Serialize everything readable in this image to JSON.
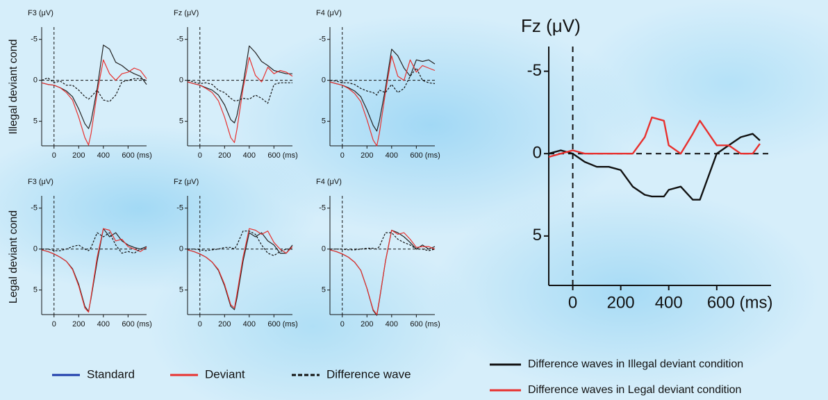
{
  "row_labels": [
    "Illegal deviant cond",
    "Legal deviant cond"
  ],
  "legend": [
    {
      "name": "Standard",
      "color": "#1c3aa9"
    },
    {
      "name": "Deviant",
      "color": "#e8302e"
    },
    {
      "name": "Difference wave",
      "color": "#111111",
      "dashed": true
    }
  ],
  "chart_data": [
    {
      "type": "line",
      "title": "F3 (μV)",
      "x": [
        -100,
        -50,
        0,
        50,
        100,
        150,
        200,
        250,
        280,
        300,
        350,
        400,
        450,
        500,
        550,
        600,
        650,
        700,
        750
      ],
      "xlim": [
        -100,
        750
      ],
      "ylim": [
        8,
        -6.5
      ],
      "xticks": [
        0,
        200,
        400,
        {
          "value": 600,
          "label": "600 (ms)"
        }
      ],
      "yticks": [
        -5,
        0,
        5
      ],
      "series": [
        {
          "color": "#222222",
          "values": [
            0.3,
            0.5,
            0.6,
            0.9,
            1.3,
            2,
            3.5,
            5.3,
            5.9,
            5,
            1,
            -4.3,
            -3.8,
            -2.2,
            -1.8,
            -1.2,
            -0.8,
            -0.5,
            0.5
          ]
        },
        {
          "color": "#e8302e",
          "values": [
            0.3,
            0.5,
            0.6,
            0.9,
            1.5,
            2.4,
            4.5,
            7,
            7.9,
            6.5,
            1.5,
            -2.5,
            -0.8,
            0,
            -0.8,
            -1,
            -1.5,
            -1.2,
            -0.2
          ]
        },
        {
          "color": "#111111",
          "dashed": true,
          "values": [
            0,
            -0.3,
            0.3,
            0.1,
            0.6,
            0.6,
            1.2,
            2,
            2.3,
            2,
            1.2,
            2.4,
            2.6,
            1.8,
            0.2,
            0,
            -0.2,
            -0.2,
            0
          ]
        }
      ]
    },
    {
      "type": "line",
      "title": "Fz (μV)",
      "x": [
        -100,
        -50,
        0,
        50,
        100,
        150,
        200,
        250,
        280,
        300,
        350,
        400,
        450,
        500,
        550,
        600,
        650,
        700,
        750
      ],
      "xlim": [
        -100,
        750
      ],
      "ylim": [
        8,
        -6.5
      ],
      "xticks": [
        0,
        200,
        400,
        {
          "value": 600,
          "label": "600 (ms)"
        }
      ],
      "yticks": [
        -5,
        0,
        5
      ],
      "series": [
        {
          "color": "#222222",
          "values": [
            0.2,
            0.4,
            0.6,
            0.9,
            1.2,
            1.8,
            3,
            4.8,
            5.2,
            4.3,
            0.5,
            -4.2,
            -3.4,
            -2.3,
            -1.8,
            -1.2,
            -1,
            -0.8,
            -0.8
          ]
        },
        {
          "color": "#e8302e",
          "values": [
            0.2,
            0.4,
            0.6,
            1,
            1.5,
            2.5,
            4.5,
            7,
            7.6,
            6,
            1,
            -2.8,
            -0.6,
            0.2,
            -1.6,
            -0.8,
            -1.2,
            -1,
            -0.5
          ]
        },
        {
          "color": "#111111",
          "dashed": true,
          "values": [
            0,
            0.2,
            0.4,
            0.3,
            0.5,
            1.2,
            1.5,
            2.2,
            2.5,
            2.5,
            2.2,
            2.3,
            1.8,
            2.2,
            2.8,
            0.5,
            0.3,
            0.3,
            0.3
          ]
        }
      ]
    },
    {
      "type": "line",
      "title": "F4 (μV)",
      "x": [
        -100,
        -50,
        0,
        50,
        100,
        150,
        200,
        250,
        280,
        300,
        350,
        400,
        450,
        500,
        550,
        600,
        650,
        700,
        750
      ],
      "xlim": [
        -100,
        750
      ],
      "ylim": [
        8,
        -6.5
      ],
      "xticks": [
        0,
        200,
        400,
        {
          "value": 600,
          "label": "600 (ms)"
        }
      ],
      "yticks": [
        -5,
        0,
        5
      ],
      "series": [
        {
          "color": "#222222",
          "values": [
            0.2,
            0.4,
            0.6,
            0.9,
            1.3,
            2,
            3.6,
            5.5,
            6.2,
            5,
            1,
            -3.8,
            -3,
            -1.5,
            -0.5,
            -2.5,
            -2.3,
            -2.5,
            -2
          ]
        },
        {
          "color": "#e8302e",
          "values": [
            0.2,
            0.4,
            0.6,
            1,
            1.6,
            2.6,
            4.8,
            7.3,
            8,
            6.5,
            1.5,
            -3,
            -0.5,
            0,
            -2.5,
            -1,
            -1.8,
            -1.5,
            -1.2
          ]
        },
        {
          "color": "#111111",
          "dashed": true,
          "values": [
            0,
            0.1,
            0.3,
            0.3,
            0.5,
            1,
            1.3,
            1.5,
            1.8,
            1.2,
            1.5,
            0.5,
            1.5,
            1,
            -0.5,
            -1.5,
            0,
            0.3,
            0.4
          ]
        }
      ]
    },
    {
      "type": "line",
      "title": "F3 (μV)",
      "x": [
        -100,
        -50,
        0,
        50,
        100,
        150,
        200,
        250,
        280,
        300,
        350,
        400,
        450,
        500,
        550,
        600,
        650,
        700,
        750
      ],
      "xlim": [
        -100,
        750
      ],
      "ylim": [
        8,
        -6.5
      ],
      "xticks": [
        0,
        200,
        400,
        {
          "value": 600,
          "label": "600 (ms)"
        }
      ],
      "yticks": [
        -5,
        0,
        5
      ],
      "series": [
        {
          "color": "#222222",
          "values": [
            0.1,
            0.3,
            0.6,
            1,
            1.5,
            2.4,
            4.3,
            7,
            7.6,
            6,
            1.5,
            -2.5,
            -1.5,
            -2,
            -1,
            -0.5,
            -0.2,
            0,
            -0.3
          ]
        },
        {
          "color": "#e8302e",
          "values": [
            0.1,
            0.3,
            0.6,
            1,
            1.5,
            2.5,
            4.5,
            7.2,
            7.7,
            5.8,
            1,
            -2.5,
            -2.3,
            -1,
            -1.2,
            -0.3,
            0,
            0.3,
            -0.2
          ]
        },
        {
          "color": "#111111",
          "dashed": true,
          "values": [
            0,
            0,
            0.2,
            0.2,
            0,
            -0.3,
            -0.5,
            0,
            0.2,
            -0.2,
            -2,
            -1.5,
            -2,
            -0.5,
            0.5,
            0.3,
            0.5,
            0,
            0
          ]
        }
      ]
    },
    {
      "type": "line",
      "title": "Fz (μV)",
      "x": [
        -100,
        -50,
        0,
        50,
        100,
        150,
        200,
        250,
        280,
        300,
        350,
        400,
        450,
        500,
        550,
        600,
        650,
        700,
        750
      ],
      "xlim": [
        -100,
        750
      ],
      "ylim": [
        8,
        -6.5
      ],
      "xticks": [
        0,
        200,
        400,
        {
          "value": 600,
          "label": "600 (ms)"
        }
      ],
      "yticks": [
        -5,
        0,
        5
      ],
      "series": [
        {
          "color": "#222222",
          "values": [
            0.1,
            0.3,
            0.6,
            1,
            1.6,
            2.6,
            4.5,
            7,
            7.4,
            6,
            1.5,
            -2,
            -1.5,
            -2,
            -1,
            -0.5,
            0.5,
            0.5,
            -0.5
          ]
        },
        {
          "color": "#e8302e",
          "values": [
            0.1,
            0.3,
            0.6,
            1,
            1.6,
            2.5,
            4.3,
            6.8,
            7.2,
            5.5,
            1,
            -2.5,
            -2.3,
            -1.8,
            -2.2,
            -0.8,
            0,
            0.5,
            -0.3
          ]
        },
        {
          "color": "#111111",
          "dashed": true,
          "values": [
            0,
            0,
            0.1,
            0.2,
            0.1,
            0,
            -0.2,
            -0.2,
            0,
            -0.5,
            -2.2,
            -2.2,
            -1.8,
            -0.5,
            0.5,
            0.8,
            0.3,
            0,
            0
          ]
        }
      ]
    },
    {
      "type": "line",
      "title": "F4 (μV)",
      "x": [
        -100,
        -50,
        0,
        50,
        100,
        150,
        200,
        250,
        280,
        300,
        350,
        400,
        450,
        500,
        550,
        600,
        650,
        700,
        750
      ],
      "xlim": [
        -100,
        750
      ],
      "ylim": [
        8,
        -6.5
      ],
      "xticks": [
        0,
        200,
        400,
        {
          "value": 600,
          "label": "600 (ms)"
        }
      ],
      "yticks": [
        -5,
        0,
        5
      ],
      "series": [
        {
          "color": "#222222",
          "values": [
            0.1,
            0.3,
            0.6,
            1,
            1.6,
            2.6,
            4.8,
            7.5,
            8.1,
            6.3,
            1.5,
            -2.3,
            -2,
            -1.5,
            -0.8,
            0,
            -0.5,
            0,
            -0.3
          ]
        },
        {
          "color": "#e8302e",
          "values": [
            0.1,
            0.3,
            0.6,
            1,
            1.6,
            2.6,
            4.8,
            7.4,
            8,
            6.2,
            1.5,
            -2.3,
            -1.8,
            -2,
            -1.2,
            -0.2,
            -0.3,
            -0.3,
            0
          ]
        },
        {
          "color": "#111111",
          "dashed": true,
          "values": [
            0,
            0,
            0,
            0.1,
            0.1,
            0,
            -0.1,
            -0.1,
            0,
            -0.3,
            -2,
            -2,
            -1.2,
            -0.8,
            -0.5,
            0,
            0,
            0.2,
            0
          ]
        }
      ]
    },
    {
      "type": "line",
      "title": "Fz (μV)",
      "x": [
        -100,
        -50,
        0,
        50,
        100,
        150,
        200,
        250,
        300,
        330,
        380,
        400,
        450,
        500,
        530,
        600,
        650,
        700,
        750,
        780
      ],
      "xlim": [
        -100,
        780
      ],
      "ylim": [
        8,
        -6.5
      ],
      "xticks": [
        0,
        200,
        400,
        {
          "value": 600,
          "label": "600 (ms)"
        }
      ],
      "yticks": [
        -5,
        0,
        5
      ],
      "series": [
        {
          "name": "Difference waves in Illegal deviant condition",
          "color": "#111111",
          "values": [
            0,
            -0.2,
            0,
            0.5,
            0.8,
            0.8,
            1,
            2,
            2.5,
            2.6,
            2.6,
            2.2,
            2,
            2.8,
            2.8,
            0,
            -0.5,
            -1,
            -1.2,
            -0.8
          ]
        },
        {
          "name": "Difference waves in Legal deviant condition",
          "color": "#e8302e",
          "values": [
            0.2,
            0,
            -0.2,
            0,
            0,
            0,
            0,
            0,
            -1,
            -2.2,
            -2,
            -0.5,
            0,
            -1.2,
            -2,
            -0.5,
            -0.5,
            0,
            0,
            -0.6
          ]
        }
      ]
    }
  ]
}
